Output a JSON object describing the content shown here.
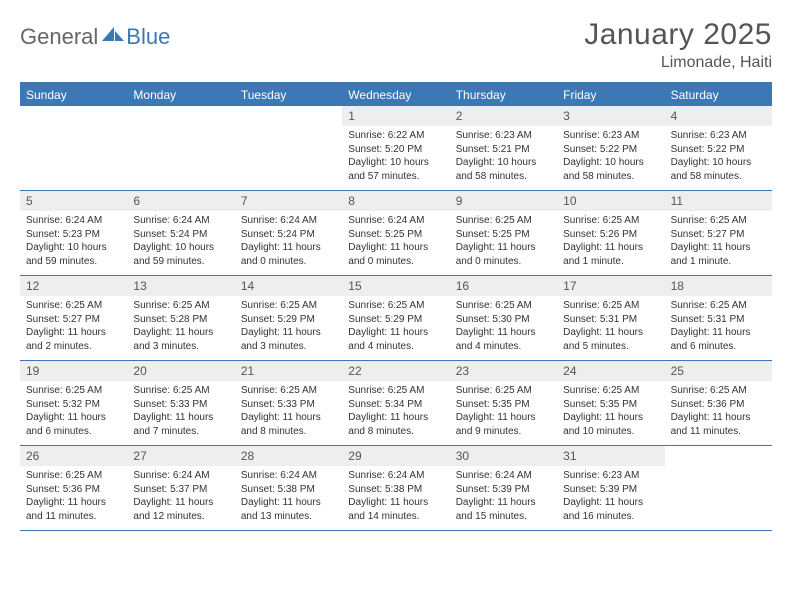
{
  "brand": {
    "part1": "General",
    "part2": "Blue"
  },
  "title": "January 2025",
  "location": "Limonade, Haiti",
  "colors": {
    "accent": "#3b78b5",
    "dow_bg": "#3b78b5",
    "dow_fg": "#ffffff",
    "daynum_bg": "#eeeeee",
    "text": "#333333",
    "muted": "#555555"
  },
  "days_of_week": [
    "Sunday",
    "Monday",
    "Tuesday",
    "Wednesday",
    "Thursday",
    "Friday",
    "Saturday"
  ],
  "weeks": [
    [
      {
        "n": "",
        "empty": true
      },
      {
        "n": "",
        "empty": true
      },
      {
        "n": "",
        "empty": true
      },
      {
        "n": "1",
        "sunrise": "Sunrise: 6:22 AM",
        "sunset": "Sunset: 5:20 PM",
        "daylight": "Daylight: 10 hours and 57 minutes."
      },
      {
        "n": "2",
        "sunrise": "Sunrise: 6:23 AM",
        "sunset": "Sunset: 5:21 PM",
        "daylight": "Daylight: 10 hours and 58 minutes."
      },
      {
        "n": "3",
        "sunrise": "Sunrise: 6:23 AM",
        "sunset": "Sunset: 5:22 PM",
        "daylight": "Daylight: 10 hours and 58 minutes."
      },
      {
        "n": "4",
        "sunrise": "Sunrise: 6:23 AM",
        "sunset": "Sunset: 5:22 PM",
        "daylight": "Daylight: 10 hours and 58 minutes."
      }
    ],
    [
      {
        "n": "5",
        "sunrise": "Sunrise: 6:24 AM",
        "sunset": "Sunset: 5:23 PM",
        "daylight": "Daylight: 10 hours and 59 minutes."
      },
      {
        "n": "6",
        "sunrise": "Sunrise: 6:24 AM",
        "sunset": "Sunset: 5:24 PM",
        "daylight": "Daylight: 10 hours and 59 minutes."
      },
      {
        "n": "7",
        "sunrise": "Sunrise: 6:24 AM",
        "sunset": "Sunset: 5:24 PM",
        "daylight": "Daylight: 11 hours and 0 minutes."
      },
      {
        "n": "8",
        "sunrise": "Sunrise: 6:24 AM",
        "sunset": "Sunset: 5:25 PM",
        "daylight": "Daylight: 11 hours and 0 minutes."
      },
      {
        "n": "9",
        "sunrise": "Sunrise: 6:25 AM",
        "sunset": "Sunset: 5:25 PM",
        "daylight": "Daylight: 11 hours and 0 minutes."
      },
      {
        "n": "10",
        "sunrise": "Sunrise: 6:25 AM",
        "sunset": "Sunset: 5:26 PM",
        "daylight": "Daylight: 11 hours and 1 minute."
      },
      {
        "n": "11",
        "sunrise": "Sunrise: 6:25 AM",
        "sunset": "Sunset: 5:27 PM",
        "daylight": "Daylight: 11 hours and 1 minute."
      }
    ],
    [
      {
        "n": "12",
        "sunrise": "Sunrise: 6:25 AM",
        "sunset": "Sunset: 5:27 PM",
        "daylight": "Daylight: 11 hours and 2 minutes."
      },
      {
        "n": "13",
        "sunrise": "Sunrise: 6:25 AM",
        "sunset": "Sunset: 5:28 PM",
        "daylight": "Daylight: 11 hours and 3 minutes."
      },
      {
        "n": "14",
        "sunrise": "Sunrise: 6:25 AM",
        "sunset": "Sunset: 5:29 PM",
        "daylight": "Daylight: 11 hours and 3 minutes."
      },
      {
        "n": "15",
        "sunrise": "Sunrise: 6:25 AM",
        "sunset": "Sunset: 5:29 PM",
        "daylight": "Daylight: 11 hours and 4 minutes."
      },
      {
        "n": "16",
        "sunrise": "Sunrise: 6:25 AM",
        "sunset": "Sunset: 5:30 PM",
        "daylight": "Daylight: 11 hours and 4 minutes."
      },
      {
        "n": "17",
        "sunrise": "Sunrise: 6:25 AM",
        "sunset": "Sunset: 5:31 PM",
        "daylight": "Daylight: 11 hours and 5 minutes."
      },
      {
        "n": "18",
        "sunrise": "Sunrise: 6:25 AM",
        "sunset": "Sunset: 5:31 PM",
        "daylight": "Daylight: 11 hours and 6 minutes."
      }
    ],
    [
      {
        "n": "19",
        "sunrise": "Sunrise: 6:25 AM",
        "sunset": "Sunset: 5:32 PM",
        "daylight": "Daylight: 11 hours and 6 minutes."
      },
      {
        "n": "20",
        "sunrise": "Sunrise: 6:25 AM",
        "sunset": "Sunset: 5:33 PM",
        "daylight": "Daylight: 11 hours and 7 minutes."
      },
      {
        "n": "21",
        "sunrise": "Sunrise: 6:25 AM",
        "sunset": "Sunset: 5:33 PM",
        "daylight": "Daylight: 11 hours and 8 minutes."
      },
      {
        "n": "22",
        "sunrise": "Sunrise: 6:25 AM",
        "sunset": "Sunset: 5:34 PM",
        "daylight": "Daylight: 11 hours and 8 minutes."
      },
      {
        "n": "23",
        "sunrise": "Sunrise: 6:25 AM",
        "sunset": "Sunset: 5:35 PM",
        "daylight": "Daylight: 11 hours and 9 minutes."
      },
      {
        "n": "24",
        "sunrise": "Sunrise: 6:25 AM",
        "sunset": "Sunset: 5:35 PM",
        "daylight": "Daylight: 11 hours and 10 minutes."
      },
      {
        "n": "25",
        "sunrise": "Sunrise: 6:25 AM",
        "sunset": "Sunset: 5:36 PM",
        "daylight": "Daylight: 11 hours and 11 minutes."
      }
    ],
    [
      {
        "n": "26",
        "sunrise": "Sunrise: 6:25 AM",
        "sunset": "Sunset: 5:36 PM",
        "daylight": "Daylight: 11 hours and 11 minutes."
      },
      {
        "n": "27",
        "sunrise": "Sunrise: 6:24 AM",
        "sunset": "Sunset: 5:37 PM",
        "daylight": "Daylight: 11 hours and 12 minutes."
      },
      {
        "n": "28",
        "sunrise": "Sunrise: 6:24 AM",
        "sunset": "Sunset: 5:38 PM",
        "daylight": "Daylight: 11 hours and 13 minutes."
      },
      {
        "n": "29",
        "sunrise": "Sunrise: 6:24 AM",
        "sunset": "Sunset: 5:38 PM",
        "daylight": "Daylight: 11 hours and 14 minutes."
      },
      {
        "n": "30",
        "sunrise": "Sunrise: 6:24 AM",
        "sunset": "Sunset: 5:39 PM",
        "daylight": "Daylight: 11 hours and 15 minutes."
      },
      {
        "n": "31",
        "sunrise": "Sunrise: 6:23 AM",
        "sunset": "Sunset: 5:39 PM",
        "daylight": "Daylight: 11 hours and 16 minutes."
      },
      {
        "n": "",
        "empty": true
      }
    ]
  ]
}
